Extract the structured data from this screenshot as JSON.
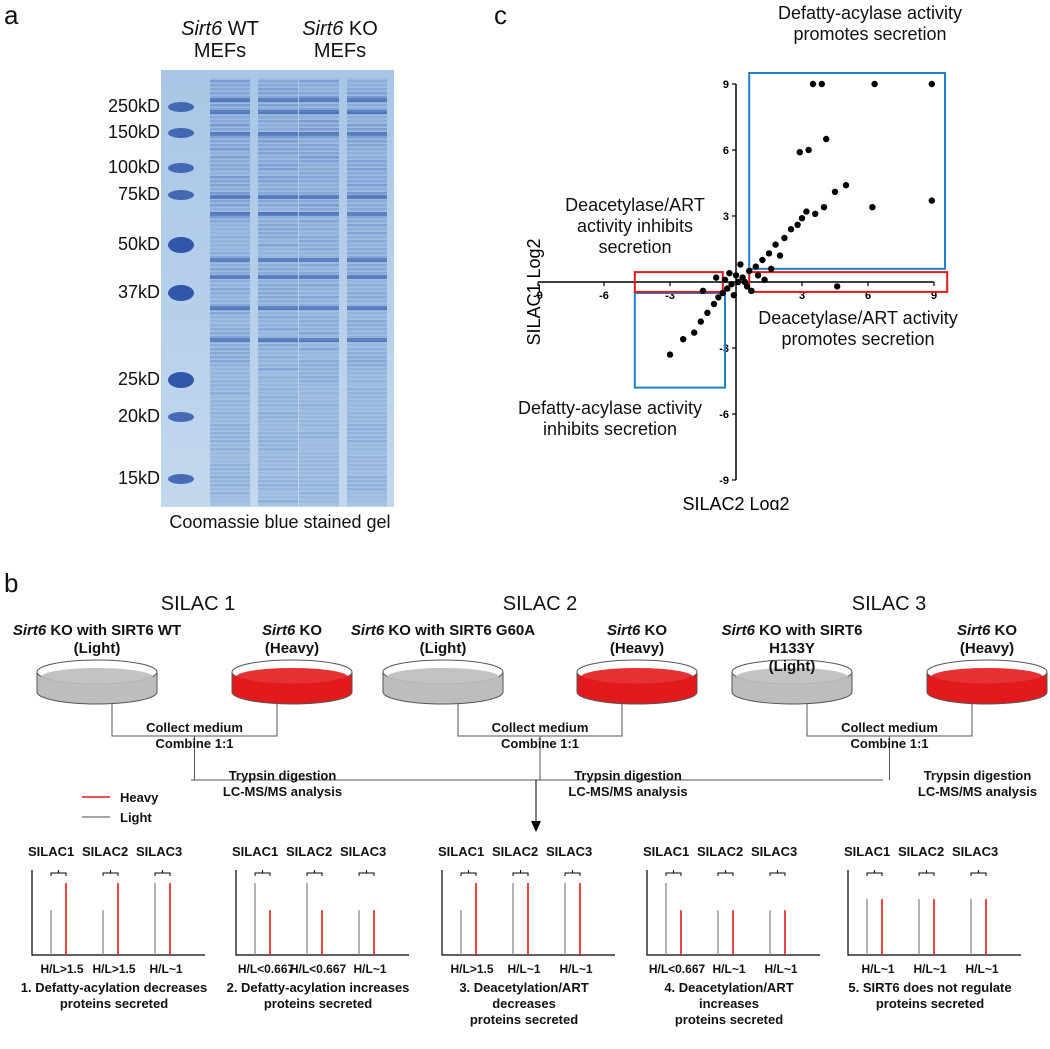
{
  "panels": {
    "a": "a",
    "b": "b",
    "c": "c"
  },
  "gel": {
    "markers": [
      "250kD",
      "150kD",
      "100kD",
      "75kD",
      "50kD",
      "37kD",
      "25kD",
      "20kD",
      "15kD"
    ],
    "samples": [
      {
        "gene": "Sirt6",
        "rest": " WT",
        "line2": "MEFs"
      },
      {
        "gene": "Sirt6",
        "rest": " KO",
        "line2": "MEFs"
      }
    ],
    "caption": "Coomassie blue stained gel"
  },
  "scatter": {
    "title_top": [
      "Defatty-acylase activity",
      "promotes secretion"
    ],
    "label_left": [
      "Deacetylase/ART",
      "activity inhibits",
      "secretion"
    ],
    "label_right": [
      "Deacetylase/ART activity",
      "promotes secretion"
    ],
    "label_bottom": [
      "Defatty-acylase activity",
      "inhibits secretion"
    ]
  },
  "chart_data": {
    "type": "scatter",
    "xlabel": "SILAC2 Log2",
    "ylabel": "SILAC1 Log2",
    "xlim": [
      -9,
      9
    ],
    "ylim": [
      -9,
      9
    ],
    "xticks": [
      "-9",
      "-6",
      "-3",
      "3",
      "6",
      "9"
    ],
    "yticks": [
      "9",
      "6",
      "3",
      "-3",
      "-6",
      "-9"
    ],
    "points": [
      [
        3.5,
        9
      ],
      [
        3.9,
        9
      ],
      [
        6.3,
        9
      ],
      [
        8.9,
        9
      ],
      [
        4.1,
        6.5
      ],
      [
        3.3,
        6.0
      ],
      [
        2.9,
        5.9
      ],
      [
        5.0,
        4.4
      ],
      [
        4.5,
        4.1
      ],
      [
        8.9,
        3.7
      ],
      [
        6.2,
        3.4
      ],
      [
        4.0,
        3.4
      ],
      [
        3.6,
        3.1
      ],
      [
        3.2,
        3.2
      ],
      [
        3.0,
        2.9
      ],
      [
        2.8,
        2.6
      ],
      [
        2.5,
        2.4
      ],
      [
        2.2,
        2.0
      ],
      [
        1.8,
        1.7
      ],
      [
        1.5,
        1.3
      ],
      [
        1.2,
        1.0
      ],
      [
        0.9,
        0.7
      ],
      [
        0.6,
        0.5
      ],
      [
        0.3,
        0.2
      ],
      [
        0.1,
        0.0
      ],
      [
        -0.2,
        -0.1
      ],
      [
        -0.4,
        -0.3
      ],
      [
        -0.6,
        -0.5
      ],
      [
        -0.8,
        -0.7
      ],
      [
        -1.0,
        -1.0
      ],
      [
        -1.3,
        -1.4
      ],
      [
        -1.6,
        -1.8
      ],
      [
        -1.9,
        -2.3
      ],
      [
        -2.4,
        -2.6
      ],
      [
        -3.0,
        -3.3
      ],
      [
        0.5,
        -0.2
      ],
      [
        1.0,
        0.3
      ],
      [
        -0.3,
        0.4
      ],
      [
        1.3,
        0.1
      ],
      [
        -0.9,
        0.2
      ],
      [
        4.6,
        -0.2
      ],
      [
        0.2,
        0.8
      ],
      [
        0.7,
        -0.4
      ],
      [
        -0.1,
        -0.6
      ],
      [
        1.6,
        0.6
      ],
      [
        2.0,
        1.2
      ],
      [
        -1.5,
        -0.4
      ],
      [
        0.0,
        0.3
      ],
      [
        0.4,
        0.0
      ],
      [
        -0.5,
        0.1
      ]
    ]
  },
  "scheme": {
    "heavy_label": "Heavy",
    "light_label": "Light",
    "colors": {
      "heavy": "#e31a1c",
      "light": "#888888"
    },
    "experiments": [
      {
        "title": "SILAC 1",
        "light_gene": "Sirt6",
        "light_rest": " KO with SIRT6 WT",
        "light_tag": "(Light)",
        "heavy_gene": "Sirt6",
        "heavy_rest": " KO",
        "heavy_tag": "(Heavy)"
      },
      {
        "title": "SILAC 2",
        "light_gene": "Sirt6",
        "light_rest": " KO with SIRT6 G60A",
        "light_tag": "(Light)",
        "heavy_gene": "Sirt6",
        "heavy_rest": " KO",
        "heavy_tag": "(Heavy)"
      },
      {
        "title": "SILAC 3",
        "light_gene": "Sirt6",
        "light_rest": " KO with SIRT6 H133Y",
        "light_tag": "(Light)",
        "heavy_gene": "Sirt6",
        "heavy_rest": " KO",
        "heavy_tag": "(Heavy)"
      }
    ],
    "collect": [
      "Collect medium",
      "Combine 1:1"
    ],
    "trypsin": [
      "Trypsin digestion",
      "LC-MS/MS analysis"
    ],
    "peak_headers": [
      "SILAC1",
      "SILAC2",
      "SILAC3"
    ],
    "outcomes": [
      {
        "ratios": [
          "H/L>1.5",
          "H/L>1.5",
          "H/L~1"
        ],
        "light": [
          0.56,
          0.56,
          0.9
        ],
        "heavy": [
          0.9,
          0.9,
          0.9
        ],
        "text": [
          "1. Defatty-acylation decreases",
          "proteins secreted"
        ]
      },
      {
        "ratios": [
          "H/L<0.667",
          "H/L<0.667",
          "H/L~1"
        ],
        "light": [
          0.9,
          0.9,
          0.56
        ],
        "heavy": [
          0.56,
          0.56,
          0.56
        ],
        "text": [
          "2. Defatty-acylation increases",
          "proteins secreted"
        ]
      },
      {
        "ratios": [
          "H/L>1.5",
          "H/L~1",
          "H/L~1"
        ],
        "light": [
          0.56,
          0.9,
          0.9
        ],
        "heavy": [
          0.9,
          0.9,
          0.9
        ],
        "text": [
          "3. Deacetylation/ART",
          "decreases",
          "proteins secreted"
        ]
      },
      {
        "ratios": [
          "H/L<0.667",
          "H/L~1",
          "H/L~1"
        ],
        "light": [
          0.9,
          0.56,
          0.56
        ],
        "heavy": [
          0.56,
          0.56,
          0.56
        ],
        "text": [
          "4. Deacetylation/ART",
          "increases",
          "proteins secreted"
        ]
      },
      {
        "ratios": [
          "H/L~1",
          "H/L~1",
          "H/L~1"
        ],
        "light": [
          0.7,
          0.7,
          0.7
        ],
        "heavy": [
          0.7,
          0.7,
          0.7
        ],
        "text": [
          "5. SIRT6 does not regulate",
          "proteins secreted"
        ]
      }
    ]
  }
}
